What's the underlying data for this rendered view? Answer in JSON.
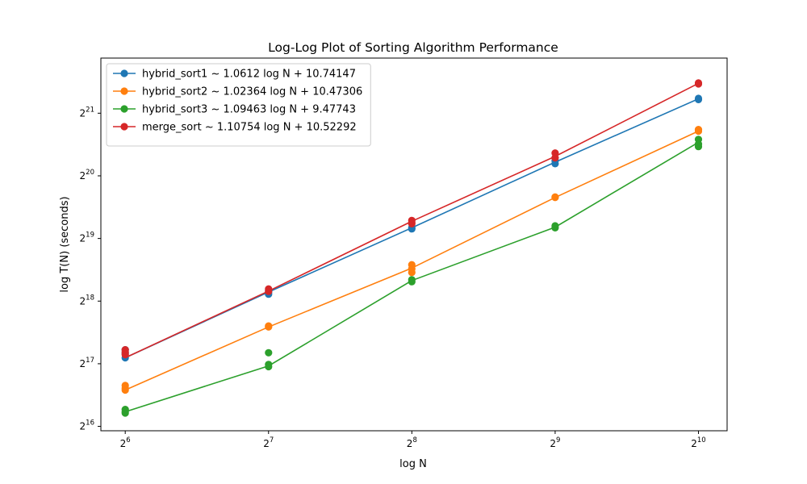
{
  "chart_data": {
    "type": "line",
    "title": "Log-Log Plot of Sorting Algorithm Performance",
    "xlabel": "log N",
    "ylabel": "log T(N) (seconds)",
    "xscale": "log2",
    "yscale": "log2",
    "xlim_exp": [
      5.83,
      10.2
    ],
    "ylim_exp": [
      15.93,
      21.88
    ],
    "xticks": [
      {
        "base": "2",
        "exp": "6",
        "value": 64
      },
      {
        "base": "2",
        "exp": "7",
        "value": 128
      },
      {
        "base": "2",
        "exp": "8",
        "value": 256
      },
      {
        "base": "2",
        "exp": "9",
        "value": 512
      },
      {
        "base": "2",
        "exp": "10",
        "value": 1024
      }
    ],
    "yticks": [
      {
        "base": "2",
        "exp": "16",
        "value": 65536
      },
      {
        "base": "2",
        "exp": "17",
        "value": 131072
      },
      {
        "base": "2",
        "exp": "18",
        "value": 262144
      },
      {
        "base": "2",
        "exp": "19",
        "value": 524288
      },
      {
        "base": "2",
        "exp": "20",
        "value": 1048576
      },
      {
        "base": "2",
        "exp": "21",
        "value": 2097152
      }
    ],
    "legend_position": "top-left",
    "grid": false,
    "series": [
      {
        "name": "hybrid_sort1 ~ 1.0612 log N + 10.74147",
        "color": "#1f77b4",
        "line": [
          [
            64,
            140000
          ],
          [
            128,
            290000
          ],
          [
            256,
            590000
          ],
          [
            512,
            1220000
          ],
          [
            1024,
            2460000
          ]
        ],
        "points": [
          [
            64,
            153000
          ],
          [
            64,
            147000
          ],
          [
            64,
            140000
          ],
          [
            128,
            283000
          ],
          [
            128,
            288000
          ],
          [
            128,
            294000
          ],
          [
            256,
            583000
          ],
          [
            256,
            590000
          ],
          [
            512,
            1200000
          ],
          [
            512,
            1240000
          ],
          [
            1024,
            2440000
          ],
          [
            1024,
            2470000
          ]
        ]
      },
      {
        "name": "hybrid_sort2 ~ 1.02364 log N + 10.47306",
        "color": "#ff7f0e",
        "line": [
          [
            64,
            98000
          ],
          [
            128,
            197000
          ],
          [
            256,
            378000
          ],
          [
            512,
            825000
          ],
          [
            1024,
            1720000
          ]
        ],
        "points": [
          [
            64,
            98000
          ],
          [
            64,
            103000
          ],
          [
            64,
            100000
          ],
          [
            128,
            197000
          ],
          [
            128,
            199000
          ],
          [
            256,
            360000
          ],
          [
            256,
            392000
          ],
          [
            256,
            375000
          ],
          [
            512,
            825000
          ],
          [
            512,
            830000
          ],
          [
            1024,
            1720000
          ],
          [
            1024,
            1750000
          ]
        ]
      },
      {
        "name": "hybrid_sort3 ~ 1.09463 log N + 9.47743",
        "color": "#2ca02c",
        "line": [
          [
            64,
            77000
          ],
          [
            128,
            128000
          ],
          [
            256,
            329000
          ],
          [
            512,
            594000
          ],
          [
            1024,
            1520000
          ]
        ],
        "points": [
          [
            64,
            76000
          ],
          [
            64,
            79000
          ],
          [
            64,
            77000
          ],
          [
            128,
            130000
          ],
          [
            128,
            127000
          ],
          [
            128,
            148000
          ],
          [
            256,
            325000
          ],
          [
            256,
            332000
          ],
          [
            512,
            590000
          ],
          [
            512,
            603000
          ],
          [
            1024,
            1450000
          ],
          [
            1024,
            1570000
          ],
          [
            1024,
            1490000
          ]
        ]
      },
      {
        "name": "merge_sort ~ 1.10754 log N + 10.52292",
        "color": "#d62728",
        "line": [
          [
            64,
            140000
          ],
          [
            128,
            293000
          ],
          [
            256,
            634000
          ],
          [
            512,
            1300000
          ],
          [
            1024,
            2920000
          ]
        ],
        "points": [
          [
            64,
            153000
          ],
          [
            64,
            149000
          ],
          [
            64,
            145000
          ],
          [
            128,
            300000
          ],
          [
            128,
            292000
          ],
          [
            256,
            640000
          ],
          [
            256,
            625000
          ],
          [
            256,
            617000
          ],
          [
            512,
            1350000
          ],
          [
            512,
            1280000
          ],
          [
            1024,
            2930000
          ],
          [
            1024,
            2900000
          ]
        ]
      }
    ]
  }
}
